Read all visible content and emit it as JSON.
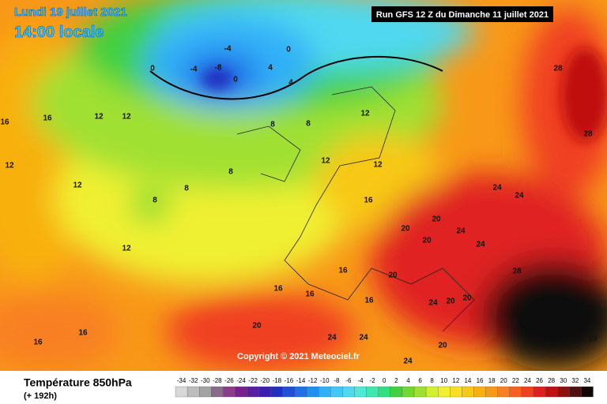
{
  "header": {
    "date": "Lundi 19 juillet 2021",
    "time": "14:00 locale",
    "run": "Run GFS 12 Z du Dimanche 11 juillet 2021",
    "copyright": "Copyright © 2021 Meteociel.fr"
  },
  "legend": {
    "title": "Température 850hPa",
    "subtitle": "(+ 192h)",
    "values": [
      -34,
      -32,
      -30,
      -28,
      -26,
      -24,
      -22,
      -20,
      -18,
      -16,
      -14,
      -12,
      -10,
      -8,
      -6,
      -4,
      -2,
      0,
      2,
      4,
      6,
      8,
      10,
      12,
      14,
      16,
      18,
      20,
      22,
      24,
      26,
      28,
      30,
      32,
      34
    ],
    "colors": [
      "#d8d8d8",
      "#bdbdbd",
      "#a3a3a3",
      "#8a6a8a",
      "#8c3c8c",
      "#7a1f8f",
      "#5a1fa0",
      "#3a1fb0",
      "#2030c0",
      "#2050d8",
      "#2070e8",
      "#2090f0",
      "#30b0f8",
      "#40c8f8",
      "#50d8f0",
      "#50e8d8",
      "#40e8b0",
      "#30e080",
      "#40d040",
      "#70d830",
      "#a0e030",
      "#d0f030",
      "#f0f030",
      "#f8e020",
      "#f8c818",
      "#f8b010",
      "#f89818",
      "#f88020",
      "#f86020",
      "#f04020",
      "#e02020",
      "#c01010",
      "#901010",
      "#501010",
      "#100808"
    ]
  },
  "map_labels": [
    "0",
    "-4",
    "-8",
    "0",
    "-4",
    "0",
    "4",
    "4",
    "8",
    "8",
    "8",
    "12",
    "16",
    "16",
    "12",
    "12",
    "8",
    "8",
    "12",
    "12",
    "12",
    "16",
    "12",
    "16",
    "20",
    "20",
    "24",
    "20",
    "24",
    "24",
    "28",
    "28",
    "16",
    "16",
    "20",
    "20",
    "16",
    "20",
    "24",
    "20",
    "28",
    "24",
    "28",
    "28",
    "24",
    "24",
    "24",
    "20",
    "16",
    "16",
    "12"
  ]
}
